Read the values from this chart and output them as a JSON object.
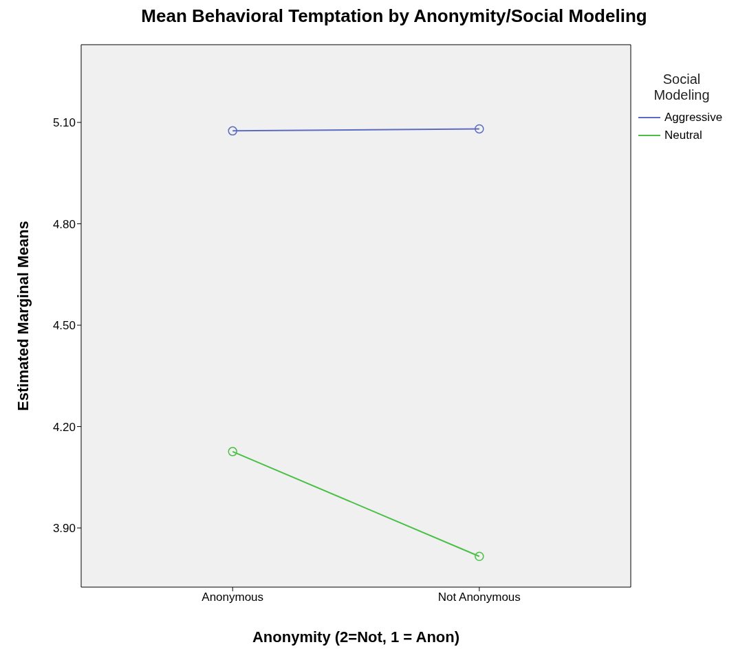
{
  "chart_data": {
    "type": "line",
    "title": "Mean Behavioral Temptation by Anonymity/Social Modeling",
    "xlabel": "Anonymity (2=Not, 1 = Anon)",
    "ylabel": "Estimated Marginal Means",
    "legend_title": "Social Modeling",
    "categories": [
      "Anonymous",
      "Not Anonymous"
    ],
    "series": [
      {
        "name": "Aggressive",
        "color": "#5b6bbf",
        "values": [
          5.075,
          5.081
        ]
      },
      {
        "name": "Neutral",
        "color": "#49c045",
        "values": [
          4.126,
          3.816
        ]
      }
    ],
    "ylim": [
      3.725,
      5.33
    ],
    "yticks": [
      {
        "value": 3.9,
        "label": "3.90"
      },
      {
        "value": 4.2,
        "label": "4.20"
      },
      {
        "value": 4.5,
        "label": "4.50"
      },
      {
        "value": 4.8,
        "label": "4.80"
      },
      {
        "value": 5.1,
        "label": "5.10"
      }
    ],
    "grid": false,
    "legend": "top right",
    "marker": "circle",
    "line_style": "solid"
  }
}
